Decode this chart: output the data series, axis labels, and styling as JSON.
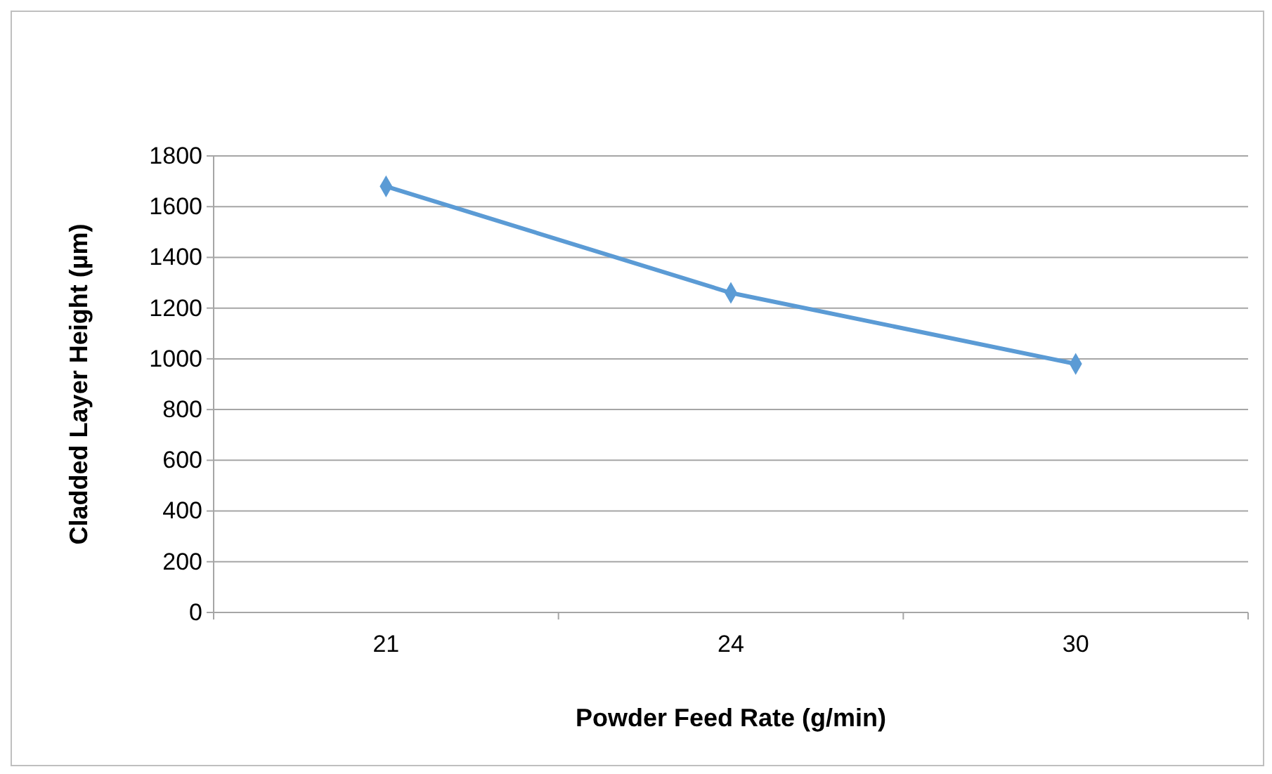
{
  "chart_data": {
    "type": "line",
    "xlabel": "Powder Feed Rate (g/min)",
    "ylabel": "Cladded Layer Height (µm)",
    "categories": [
      "21",
      "24",
      "30"
    ],
    "series": [
      {
        "color": "#5b9bd5",
        "values": [
          1680,
          1260,
          980
        ]
      }
    ],
    "ylim": [
      0,
      1800
    ],
    "yticks": [
      0,
      200,
      400,
      600,
      800,
      1000,
      1200,
      1400,
      1600,
      1800
    ],
    "grid": "y",
    "marker": "diamond",
    "line_style": "solid"
  }
}
